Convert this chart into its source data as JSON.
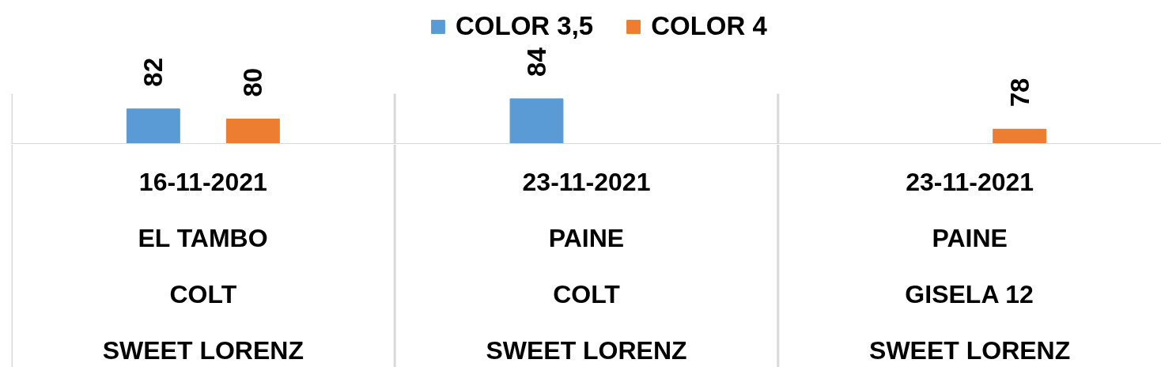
{
  "chart_data": {
    "type": "bar",
    "categories": [
      "16-11-2021\nEL TAMBO\nCOLT\nSWEET LORENZ",
      "23-11-2021\nPAINE\nCOLT\nSWEET LORENZ",
      "23-11-2021\nPAINE\nGISELA 12\nSWEET LORENZ"
    ],
    "series": [
      {
        "name": "COLOR 3,5",
        "color": "#5b9bd5",
        "values": [
          82,
          84,
          null
        ]
      },
      {
        "name": "COLOR 4",
        "color": "#ed7d31",
        "values": [
          80,
          null,
          78
        ]
      }
    ],
    "ylim": [
      75,
      85
    ],
    "data_labels": true,
    "legend": "top",
    "tick_labels": "x",
    "grid": "x"
  }
}
